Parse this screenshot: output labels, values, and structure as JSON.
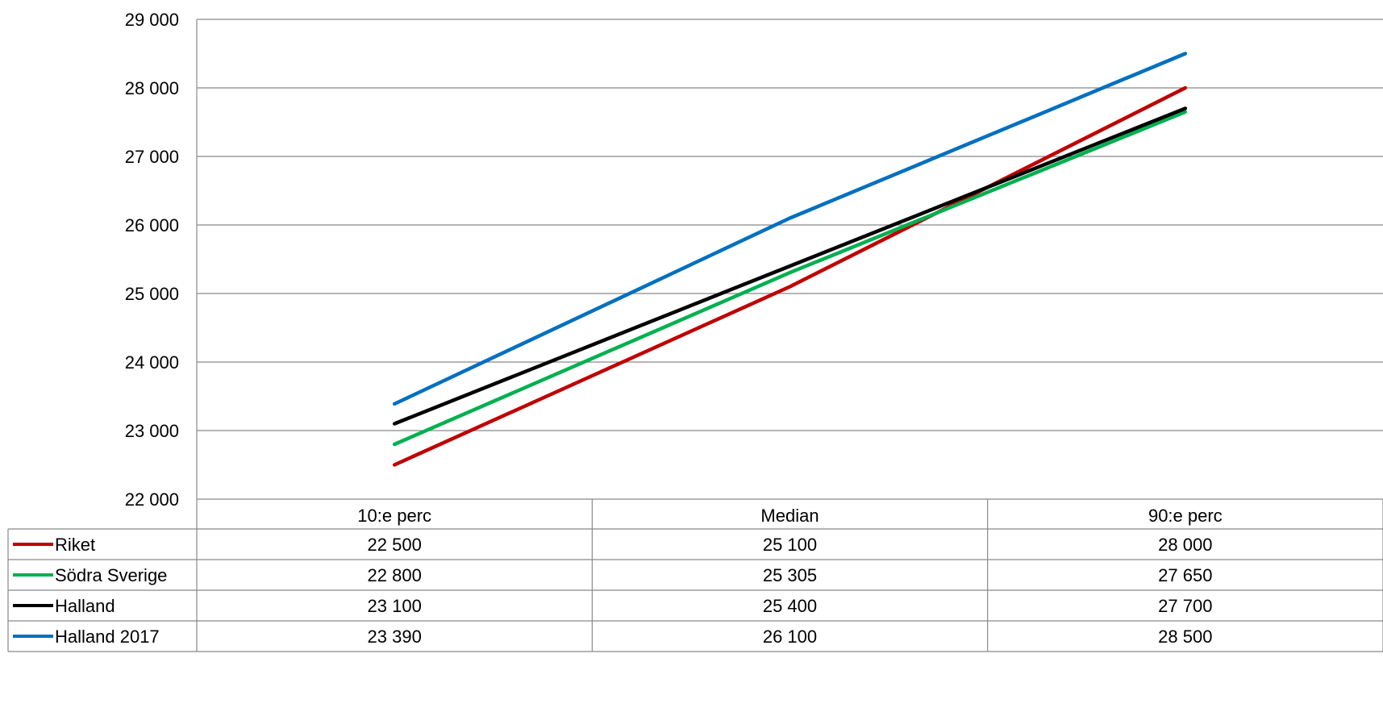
{
  "chart_data": {
    "type": "line",
    "categories": [
      "10:e perc",
      "Median",
      "90:e perc"
    ],
    "ylim": [
      22000,
      29000
    ],
    "yticks": [
      22000,
      23000,
      24000,
      25000,
      26000,
      27000,
      28000,
      29000
    ],
    "ytick_labels": [
      "22 000",
      "23 000",
      "24 000",
      "25 000",
      "26 000",
      "27 000",
      "28 000",
      "29 000"
    ],
    "grid": true,
    "legend": "data-table-left",
    "series": [
      {
        "name": "Riket",
        "color": "#C00000",
        "values": [
          22500,
          25100,
          28000
        ],
        "labels": [
          "22 500",
          "25 100",
          "28 000"
        ]
      },
      {
        "name": "Södra Sverige",
        "color": "#00B050",
        "values": [
          22800,
          25305,
          27650
        ],
        "labels": [
          "22 800",
          "25 305",
          "27 650"
        ]
      },
      {
        "name": "Halland",
        "color": "#000000",
        "values": [
          23100,
          25400,
          27700
        ],
        "labels": [
          "23 100",
          "25 400",
          "27 700"
        ]
      },
      {
        "name": "Halland 2017",
        "color": "#0070C0",
        "values": [
          23390,
          26100,
          28500
        ],
        "labels": [
          "23 390",
          "26 100",
          "28 500"
        ]
      }
    ]
  }
}
